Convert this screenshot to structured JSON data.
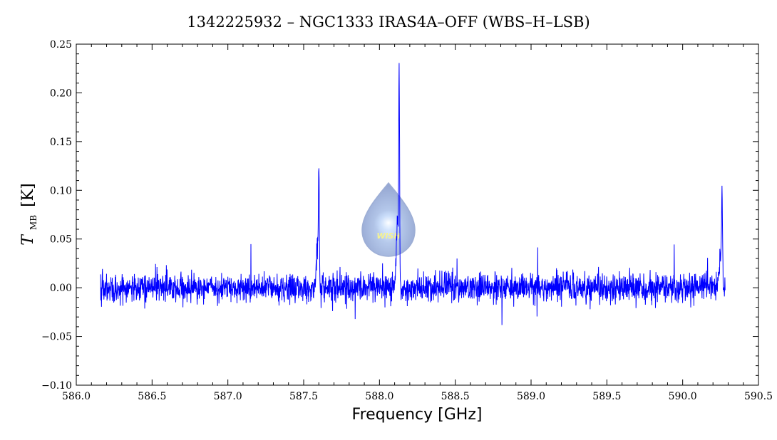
{
  "chart_data": {
    "type": "line",
    "title": "1342225932 – NGC1333 IRAS4A–OFF (WBS–H–LSB)",
    "xlabel": "Frequency [GHz]",
    "ylabel_symbol": "T",
    "ylabel_subscript": "MB",
    "ylabel_unit": "[K]",
    "xlim": [
      586.0,
      590.5
    ],
    "ylim": [
      -0.1,
      0.25
    ],
    "x_ticks": [
      "586.0",
      "586.5",
      "587.0",
      "587.5",
      "588.0",
      "588.5",
      "589.0",
      "589.5",
      "590.0",
      "590.5"
    ],
    "y_ticks": [
      "−0.10",
      "−0.05",
      "0.00",
      "0.05",
      "0.10",
      "0.15",
      "0.20",
      "0.25"
    ],
    "grid": false,
    "series": [
      {
        "color": "#0000ff",
        "x_range": [
          586.16,
          590.28
        ],
        "noise_rms": 0.012,
        "baseline": 0.0,
        "lines": [
          {
            "x": 587.6,
            "peak": 0.107
          },
          {
            "x": 588.13,
            "peak": 0.194
          },
          {
            "x": 590.26,
            "peak": 0.09
          }
        ]
      }
    ],
    "logo": {
      "text": "WISH"
    }
  }
}
